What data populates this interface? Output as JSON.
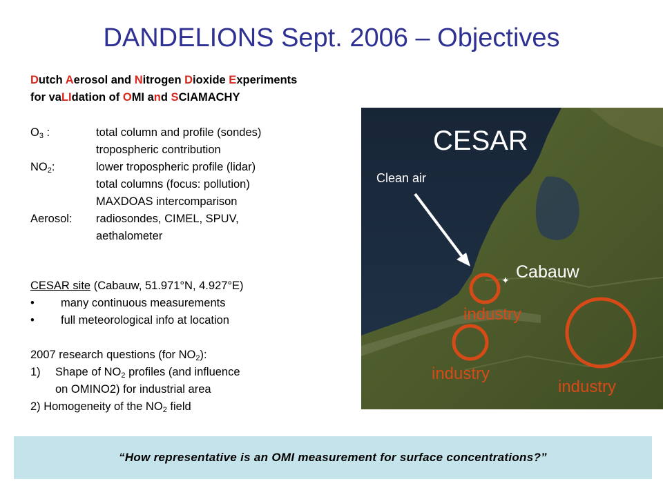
{
  "title": "DANDELIONS Sept. 2006 – Objectives",
  "acronym": {
    "line1": [
      {
        "t": "D",
        "hl": true
      },
      {
        "t": "utch ",
        "hl": false
      },
      {
        "t": "A",
        "hl": true
      },
      {
        "t": "erosol and ",
        "hl": false
      },
      {
        "t": "N",
        "hl": true
      },
      {
        "t": "itrogen ",
        "hl": false
      },
      {
        "t": "D",
        "hl": true
      },
      {
        "t": "ioxide ",
        "hl": false
      },
      {
        "t": "E",
        "hl": true
      },
      {
        "t": "xperiments",
        "hl": false
      }
    ],
    "line2": [
      {
        "t": "for va",
        "hl": false
      },
      {
        "t": "LI",
        "hl": true
      },
      {
        "t": "dation of ",
        "hl": false
      },
      {
        "t": "O",
        "hl": true
      },
      {
        "t": "MI a",
        "hl": false
      },
      {
        "t": "n",
        "hl": true
      },
      {
        "t": "d ",
        "hl": false
      },
      {
        "t": "S",
        "hl": true
      },
      {
        "t": "CIAMACHY",
        "hl": false
      }
    ]
  },
  "objectives": {
    "o3_label": "O",
    "o3_sub": "3",
    "o3_colon": " :",
    "o3_lines": [
      "total column and profile (sondes)",
      "tropospheric contribution"
    ],
    "no2_label": "NO",
    "no2_sub": "2",
    "no2_colon": ":",
    "no2_lines": [
      "lower tropospheric profile (lidar)",
      "total columns (focus: pollution)",
      "MAXDOAS intercomparison"
    ],
    "aerosol_label": "Aerosol:",
    "aerosol_lines": [
      "radiosondes, CIMEL, SPUV,",
      "aethalometer"
    ]
  },
  "site": {
    "heading_link": "CESAR site",
    "heading_rest": " (Cabauw, 51.971°N, 4.927°E)",
    "bullet_char": "•",
    "bullets": [
      "many continuous measurements",
      "full meteorological info at location"
    ]
  },
  "questions": {
    "intro_a": "2007 research questions (for NO",
    "intro_sub": "2",
    "intro_b": "):",
    "q1_num": "1)",
    "q1_a": "Shape of NO",
    "q1_sub": "2",
    "q1_b": " profiles (and influence",
    "q1_cont": "on OMINO2) for industrial area",
    "q2_a": "2) Homogeneity of the NO",
    "q2_sub": "2",
    "q2_b": " field"
  },
  "map": {
    "cesar_label": "CESAR",
    "clean_air_label": "Clean air",
    "cabauw_label": "Cabauw",
    "cabauw_marker": "✦",
    "industry_label": "industry",
    "sea_color": "#1c2b3b",
    "land_color": "#4f5e2e",
    "marker_color": "#d64a18"
  },
  "quote": "“How representative is an OMI measurement for surface concentrations?”"
}
